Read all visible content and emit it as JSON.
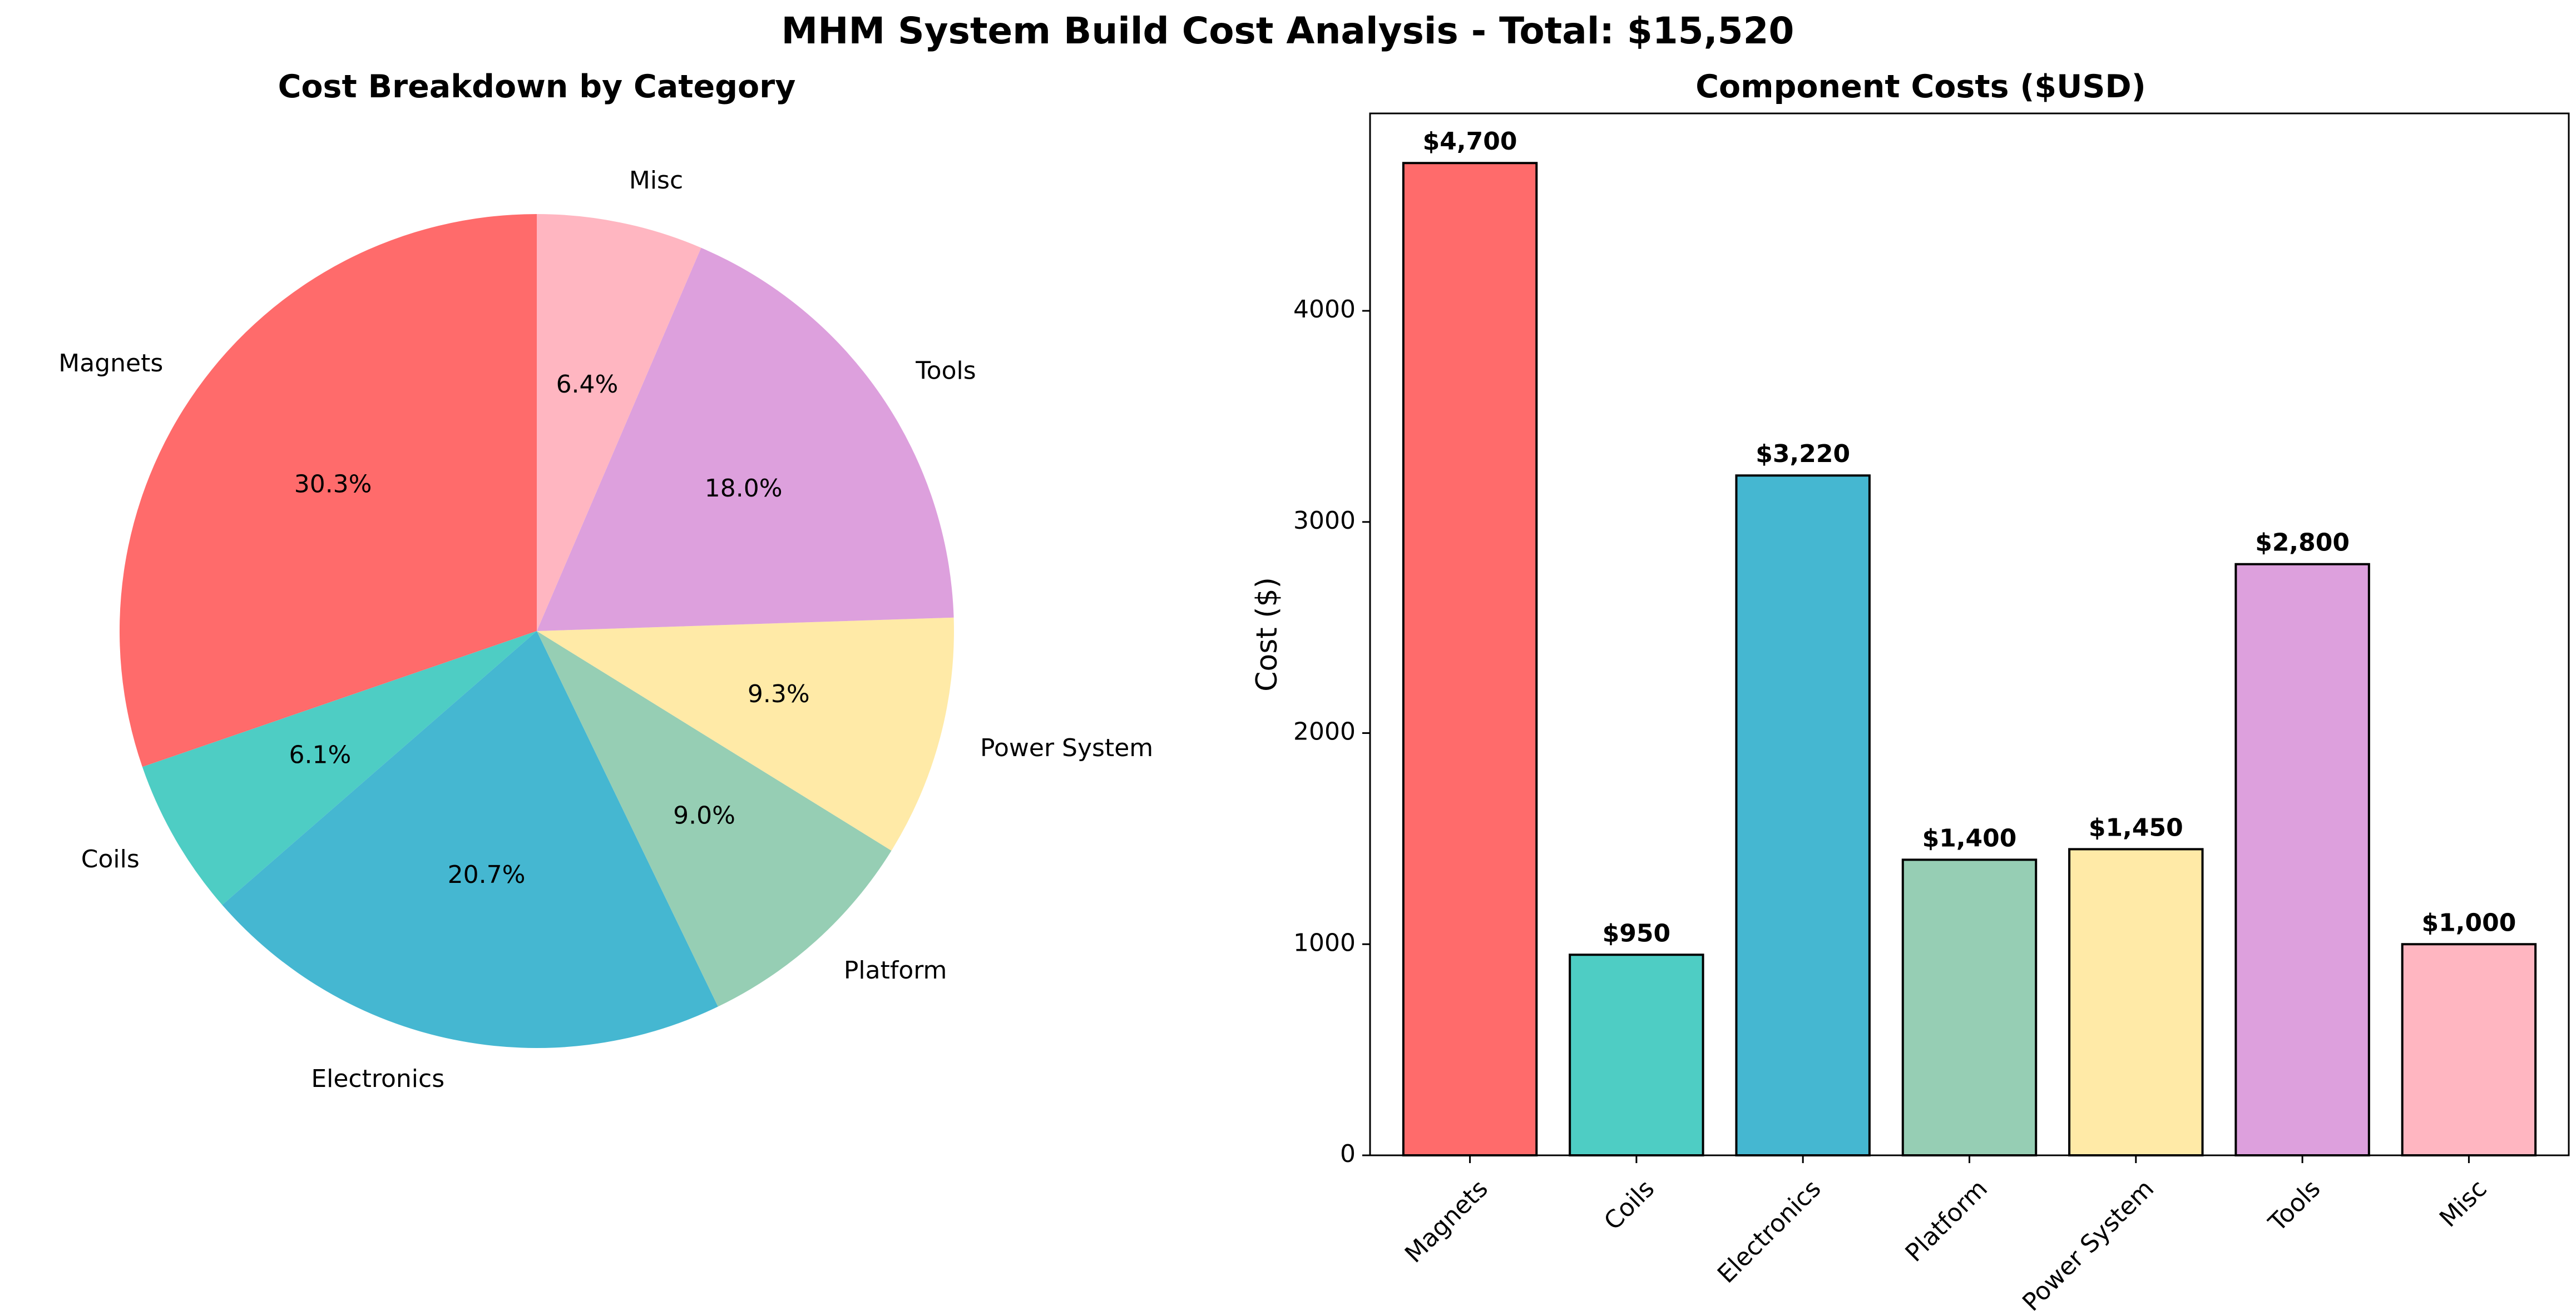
{
  "figure": {
    "title": "MHM System Build Cost Analysis - Total: $15,520"
  },
  "colors": [
    "#ff6b6b",
    "#4ecdc4",
    "#45b7d1",
    "#96ceb4",
    "#ffeaa7",
    "#dda0dd",
    "#ffb6c1"
  ],
  "chart_data": [
    {
      "type": "pie",
      "title": "Cost Breakdown by Category",
      "categories": [
        "Magnets",
        "Coils",
        "Electronics",
        "Platform",
        "Power System",
        "Tools",
        "Misc"
      ],
      "values": [
        4700,
        950,
        3220,
        1400,
        1450,
        2800,
        1000
      ],
      "percent_labels": [
        "30.3%",
        "6.1%",
        "20.7%",
        "9.0%",
        "9.3%",
        "18.0%",
        "6.4%"
      ],
      "start_angle_deg": 90,
      "direction": "counterclockwise"
    },
    {
      "type": "bar",
      "title": "Component Costs ($USD)",
      "categories": [
        "Magnets",
        "Coils",
        "Electronics",
        "Platform",
        "Power System",
        "Tools",
        "Misc"
      ],
      "values": [
        4700,
        950,
        3220,
        1400,
        1450,
        2800,
        1000
      ],
      "value_labels": [
        "$4,700",
        "$950",
        "$3,220",
        "$1,400",
        "$1,450",
        "$2,800",
        "$1,000"
      ],
      "xlabel": "",
      "ylabel": "Cost ($)",
      "ylim": [
        0,
        4935
      ],
      "yticks": [
        0,
        1000,
        2000,
        3000,
        4000
      ],
      "xtick_rotation_deg": 45,
      "grid": false
    }
  ]
}
